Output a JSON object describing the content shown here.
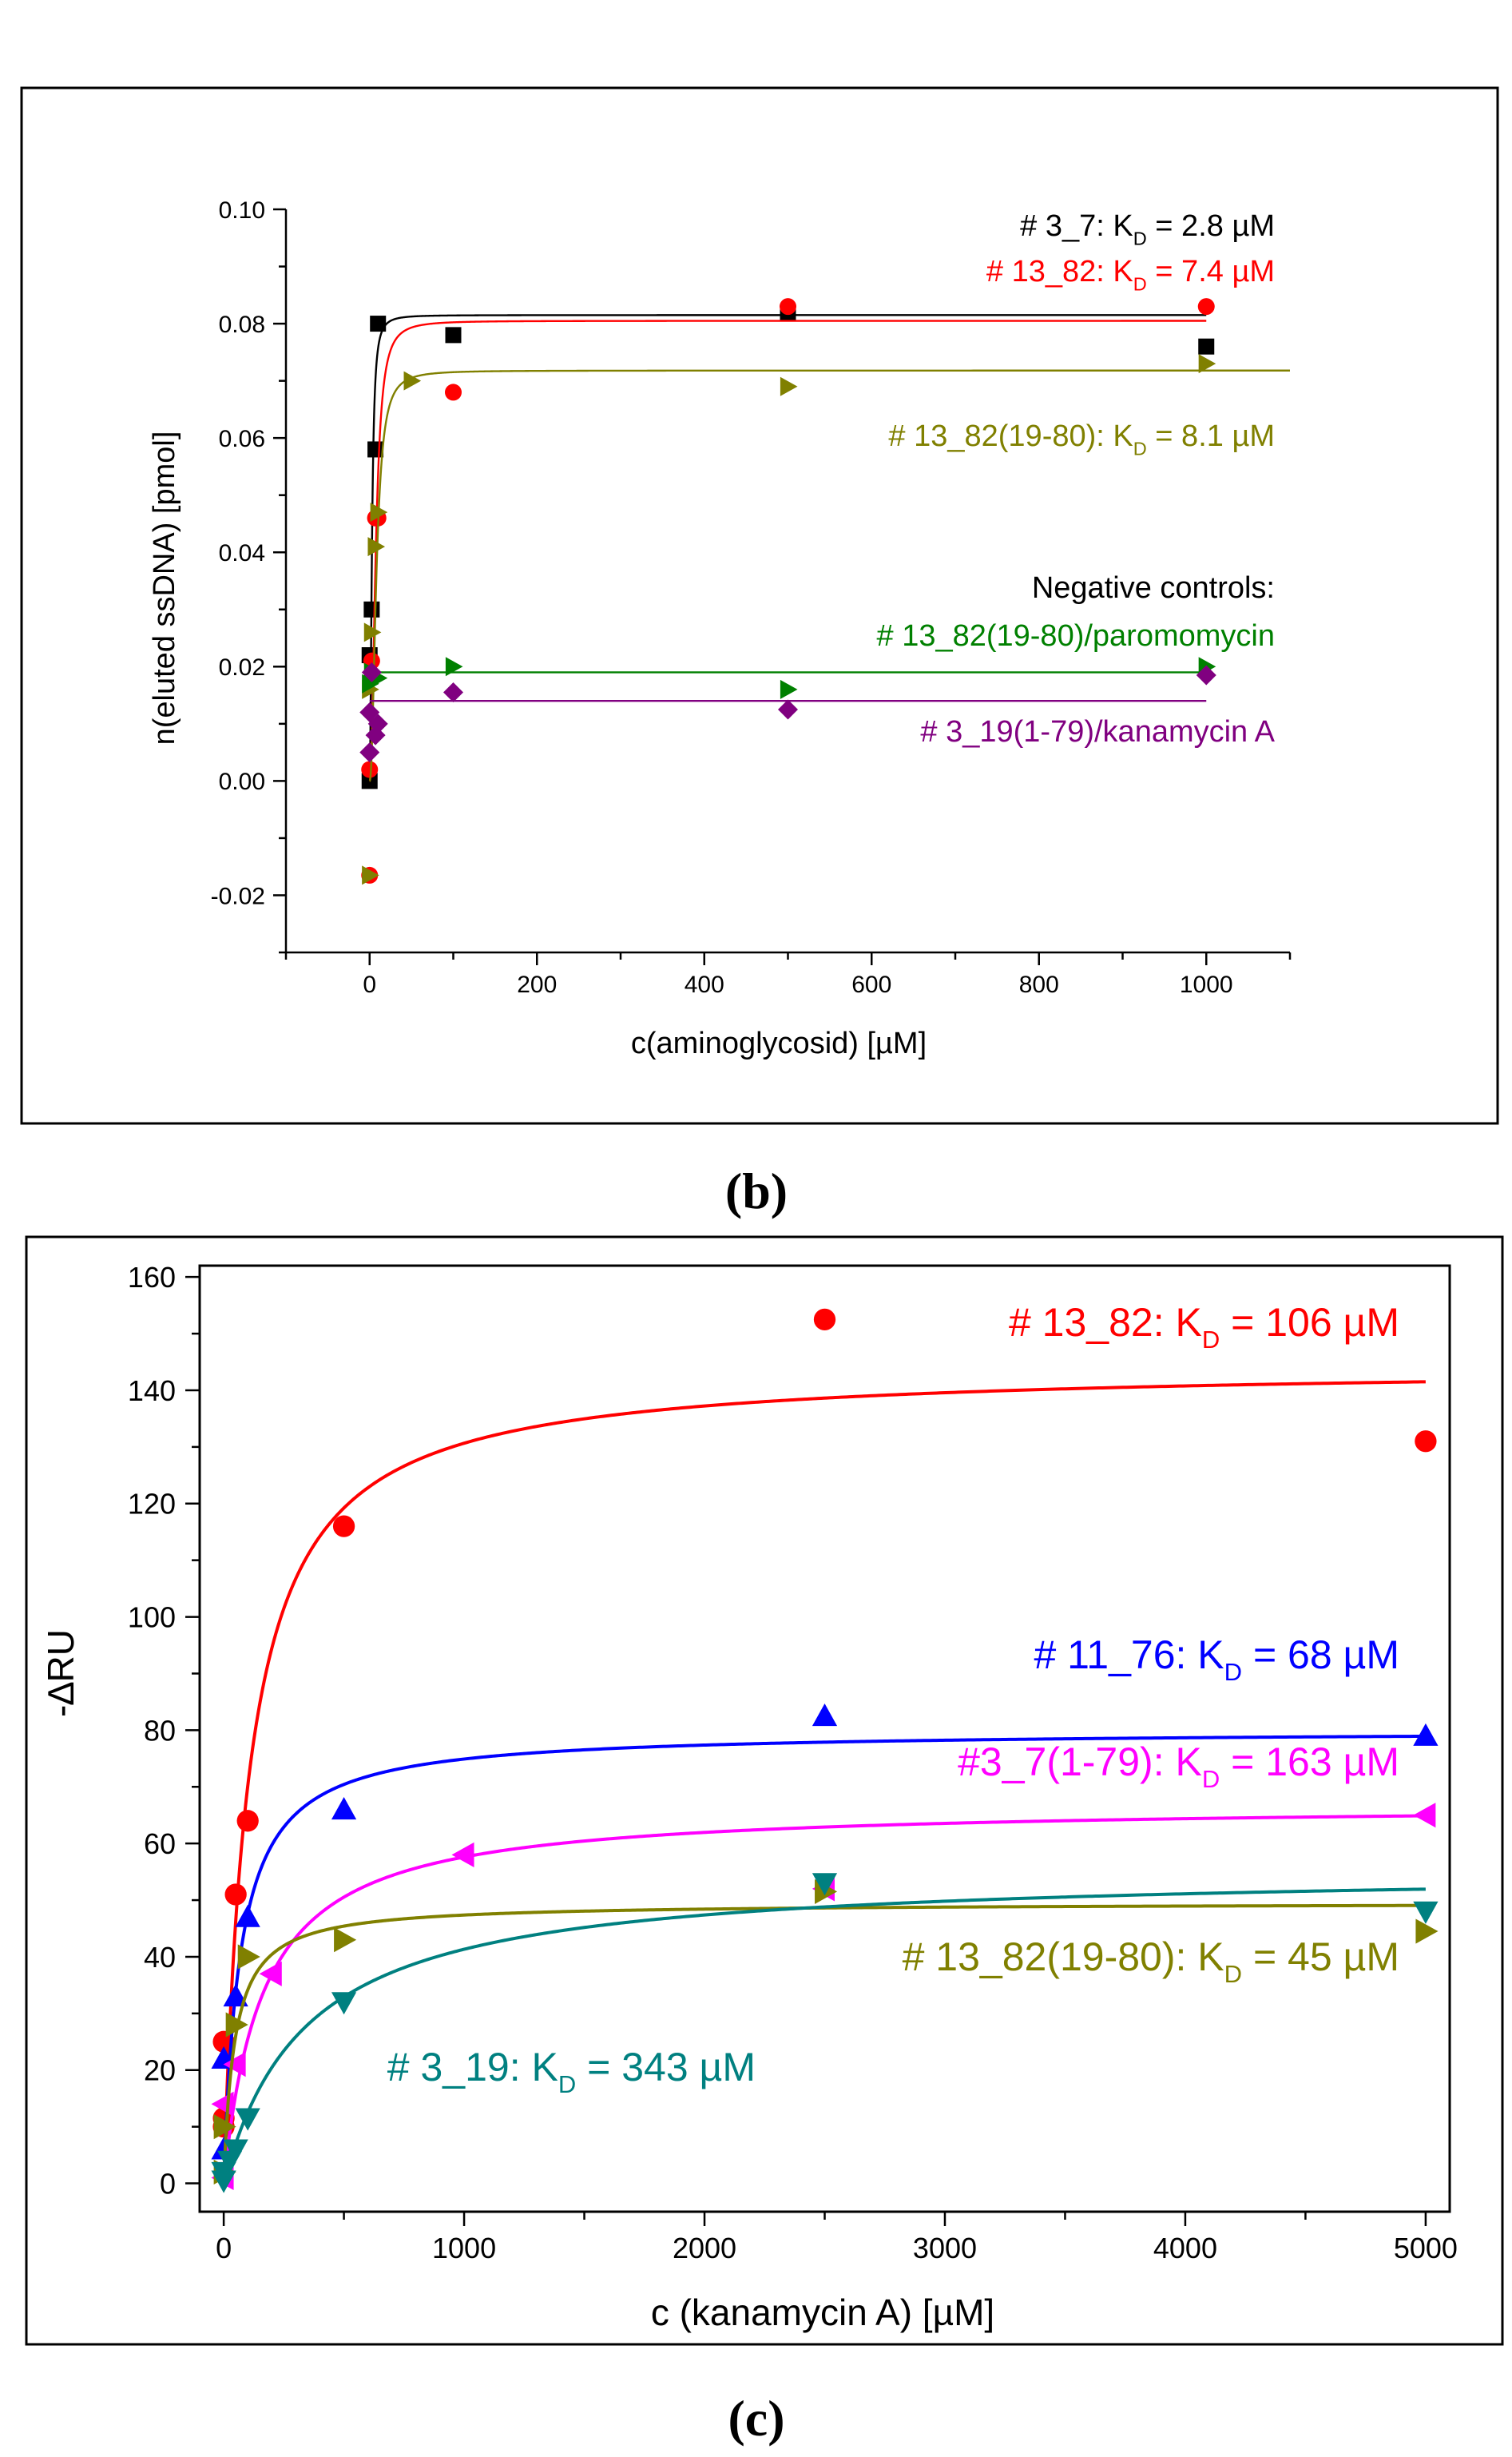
{
  "charts": [
    {
      "id": "b",
      "panel_label": "(b)",
      "chart_data": {
        "type": "scatter",
        "title": "",
        "xlabel": "c(aminoglycosid) [µM]",
        "ylabel": "n(eluted ssDNA) [pmol]",
        "xlim": [
          -100,
          1100
        ],
        "ylim": [
          -0.03,
          0.1
        ],
        "x_major_ticks": [
          0,
          200,
          400,
          600,
          800,
          1000
        ],
        "x_tick_labels": [
          "0",
          "200",
          "400",
          "600",
          "800",
          "1000"
        ],
        "y_major_ticks": [
          -0.02,
          0.0,
          0.02,
          0.04,
          0.06,
          0.08,
          0.1
        ],
        "y_tick_labels": [
          "-0.02",
          "0.00",
          "0.02",
          "0.04",
          "0.06",
          "0.08",
          "0.10"
        ],
        "series": [
          {
            "name": "# 3_7",
            "color": "#000000",
            "marker": "square",
            "points": [
              [
                0,
                0.0
              ],
              [
                0,
                0.022
              ],
              [
                2.5,
                0.03
              ],
              [
                7,
                0.058
              ],
              [
                10,
                0.08
              ],
              [
                100,
                0.078
              ],
              [
                500,
                0.082
              ],
              [
                1000,
                0.076
              ]
            ],
            "fit": {
              "model": "hill",
              "bmax": 0.0815,
              "kd": 2.8,
              "n": 2.0
            }
          },
          {
            "name": "# 13_82",
            "color": "#ff0000",
            "marker": "circle",
            "points": [
              [
                0,
                -0.0165
              ],
              [
                0,
                0.002
              ],
              [
                2.5,
                0.021
              ],
              [
                7,
                0.046
              ],
              [
                10,
                0.046
              ],
              [
                100,
                0.068
              ],
              [
                500,
                0.083
              ],
              [
                1000,
                0.083
              ]
            ],
            "fit": {
              "model": "hill",
              "bmax": 0.0805,
              "kd": 7.4,
              "n": 2.2
            }
          },
          {
            "name": "# 13_82(19-80)",
            "color": "#808000",
            "marker": "triangle-right",
            "points": [
              [
                0,
                -0.0165
              ],
              [
                0,
                0.016
              ],
              [
                2.5,
                0.026
              ],
              [
                7,
                0.041
              ],
              [
                10,
                0.047
              ],
              [
                50,
                0.07
              ],
              [
                500,
                0.069
              ],
              [
                1000,
                0.073
              ]
            ],
            "fit": {
              "model": "hill",
              "bmax": 0.0718,
              "kd": 8.1,
              "n": 2.2
            }
          },
          {
            "name": "# 13_82(19-80)/paromomycin",
            "color": "#008000",
            "marker": "triangle-right",
            "points": [
              [
                0,
                0.017
              ],
              [
                2.5,
                0.019
              ],
              [
                7,
                0.018
              ],
              [
                10,
                0.018
              ],
              [
                100,
                0.02
              ],
              [
                500,
                0.016
              ],
              [
                1000,
                0.02
              ]
            ],
            "fit": {
              "model": "constant",
              "value": 0.019
            }
          },
          {
            "name": "# 3_19(1-79)/kanamycin A",
            "color": "#800080",
            "marker": "diamond",
            "points": [
              [
                0,
                0.005
              ],
              [
                0,
                0.012
              ],
              [
                2.5,
                0.019
              ],
              [
                7,
                0.008
              ],
              [
                10,
                0.01
              ],
              [
                100,
                0.0155
              ],
              [
                500,
                0.0125
              ],
              [
                1000,
                0.0185
              ]
            ],
            "fit": {
              "model": "constant",
              "value": 0.014
            }
          }
        ],
        "annotations": [
          {
            "prefix": "# 3_7: K",
            "sub": "D",
            "suffix": " = 2.8 µM",
            "color": "#000000"
          },
          {
            "prefix": "# 13_82: K",
            "sub": "D",
            "suffix": " = 7.4 µM",
            "color": "#ff0000"
          },
          {
            "prefix": "# 13_82(19-80): K",
            "sub": "D",
            "suffix": " = 8.1 µM",
            "color": "#808000"
          },
          {
            "text": "Negative controls:",
            "color": "#000000"
          },
          {
            "text": "# 13_82(19-80)/paromomycin",
            "color": "#008000"
          },
          {
            "text": "# 3_19(1-79)/kanamycin A",
            "color": "#800080"
          }
        ]
      }
    },
    {
      "id": "c",
      "panel_label": "(c)",
      "chart_data": {
        "type": "scatter",
        "title": "",
        "xlabel": "c (kanamycin A) [µM]",
        "ylabel": "-∆RU",
        "xlim": [
          -100,
          5100
        ],
        "ylim": [
          -5,
          162
        ],
        "x_major_ticks": [
          0,
          1000,
          2000,
          3000,
          4000,
          5000
        ],
        "x_tick_labels": [
          "0",
          "1000",
          "2000",
          "3000",
          "4000",
          "5000"
        ],
        "y_major_ticks": [
          0,
          20,
          40,
          60,
          80,
          100,
          120,
          140,
          160
        ],
        "y_tick_labels": [
          "0",
          "20",
          "40",
          "60",
          "80",
          "100",
          "120",
          "140",
          "160"
        ],
        "series": [
          {
            "name": "# 13_82",
            "color": "#ff0000",
            "marker": "circle",
            "points": [
              [
                0,
                10
              ],
              [
                0,
                11.5
              ],
              [
                0,
                25
              ],
              [
                50,
                51
              ],
              [
                100,
                64
              ],
              [
                500,
                116
              ],
              [
                2500,
                152.5
              ],
              [
                5000,
                131
              ]
            ],
            "fit": {
              "model": "hyperbolic",
              "bmax": 144.5,
              "kd": 106
            }
          },
          {
            "name": "# 11_76",
            "color": "#0000ff",
            "marker": "triangle-up",
            "points": [
              [
                0,
                6
              ],
              [
                0,
                22
              ],
              [
                50,
                33
              ],
              [
                100,
                47
              ],
              [
                500,
                66
              ],
              [
                2500,
                82.5
              ],
              [
                5000,
                79
              ]
            ],
            "fit": {
              "model": "hyperbolic",
              "bmax": 80,
              "kd": 68
            }
          },
          {
            "name": "#3_7(1-79)",
            "color": "#ff00ff",
            "marker": "triangle-left",
            "points": [
              [
                0,
                1
              ],
              [
                0,
                14
              ],
              [
                50,
                21
              ],
              [
                200,
                37
              ],
              [
                1000,
                58
              ],
              [
                2500,
                52
              ],
              [
                5000,
                65
              ]
            ],
            "fit": {
              "model": "hyperbolic",
              "bmax": 67,
              "kd": 163
            }
          },
          {
            "name": "# 13_82(19-80)",
            "color": "#808000",
            "marker": "triangle-right",
            "points": [
              [
                0,
                2
              ],
              [
                0,
                10
              ],
              [
                50,
                28
              ],
              [
                100,
                40
              ],
              [
                500,
                43
              ],
              [
                2500,
                51.5
              ],
              [
                5000,
                44.5
              ]
            ],
            "fit": {
              "model": "hyperbolic",
              "bmax": 49.5,
              "kd": 45
            }
          },
          {
            "name": "# 3_19",
            "color": "#008080",
            "marker": "triangle-down",
            "points": [
              [
                0,
                0.5
              ],
              [
                0,
                2
              ],
              [
                25,
                4
              ],
              [
                50,
                6
              ],
              [
                100,
                11.5
              ],
              [
                500,
                32
              ],
              [
                2500,
                53
              ],
              [
                5000,
                48
              ]
            ],
            "fit": {
              "model": "hyperbolic",
              "bmax": 55.5,
              "kd": 343
            }
          }
        ],
        "annotations": [
          {
            "prefix": "# 13_82: K",
            "sub": "D",
            "suffix": " = 106 µM",
            "color": "#ff0000"
          },
          {
            "prefix": "# 11_76: K",
            "sub": "D",
            "suffix": " = 68 µM",
            "color": "#0000ff"
          },
          {
            "prefix": "#3_7(1-79): K",
            "sub": "D",
            "suffix": " = 163 µM",
            "color": "#ff00ff"
          },
          {
            "prefix": "# 13_82(19-80): K",
            "sub": "D",
            "suffix": " = 45 µM",
            "color": "#808000"
          },
          {
            "prefix": "# 3_19: K",
            "sub": "D",
            "suffix": " = 343 µM",
            "color": "#008080"
          }
        ]
      }
    }
  ]
}
